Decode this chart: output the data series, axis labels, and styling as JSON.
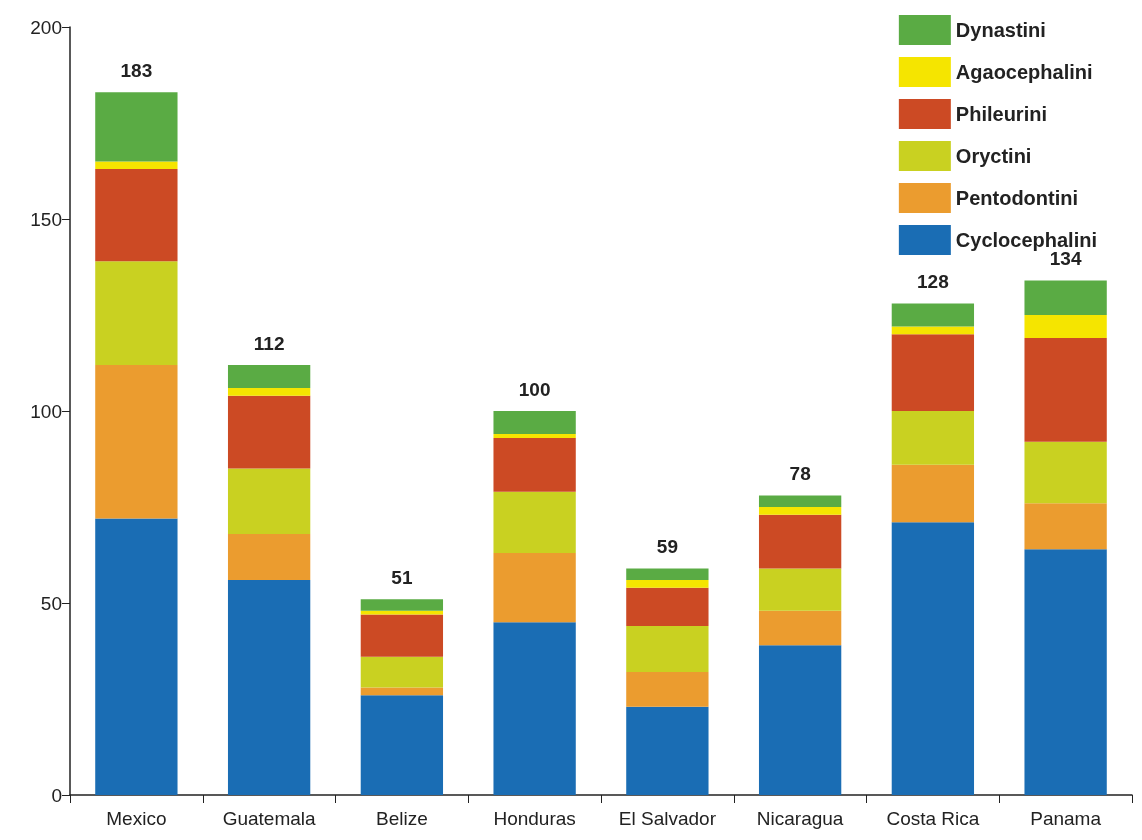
{
  "chart_data": {
    "type": "bar",
    "stacked": true,
    "categories": [
      "Mexico",
      "Guatemala",
      "Belize",
      "Honduras",
      "El Salvador",
      "Nicaragua",
      "Costa Rica",
      "Panama"
    ],
    "series": [
      {
        "name": "Cyclocephalini",
        "color": "#1a6db4",
        "values": [
          72,
          56,
          26,
          45,
          23,
          39,
          71,
          64
        ]
      },
      {
        "name": "Pentodontini",
        "color": "#eb9c2f",
        "values": [
          40,
          12,
          2,
          18,
          9,
          9,
          15,
          12
        ]
      },
      {
        "name": "Oryctini",
        "color": "#c9d121",
        "values": [
          27,
          17,
          8,
          16,
          12,
          11,
          14,
          16
        ]
      },
      {
        "name": "Phileurini",
        "color": "#cc4a24",
        "values": [
          24,
          19,
          11,
          14,
          10,
          14,
          20,
          27
        ]
      },
      {
        "name": "Agaocephalini",
        "color": "#f5e500",
        "values": [
          2,
          2,
          1,
          1,
          2,
          2,
          2,
          6
        ]
      },
      {
        "name": "Dynastini",
        "color": "#5aab44",
        "values": [
          18,
          6,
          3,
          6,
          3,
          3,
          6,
          9
        ]
      }
    ],
    "totals": [
      "183",
      "112",
      "51",
      "100",
      "59",
      "78",
      "128",
      "134"
    ],
    "ylim": [
      0,
      200
    ],
    "yticks": [
      0,
      50,
      100,
      150,
      200
    ],
    "grid": false,
    "legend": "top right"
  }
}
